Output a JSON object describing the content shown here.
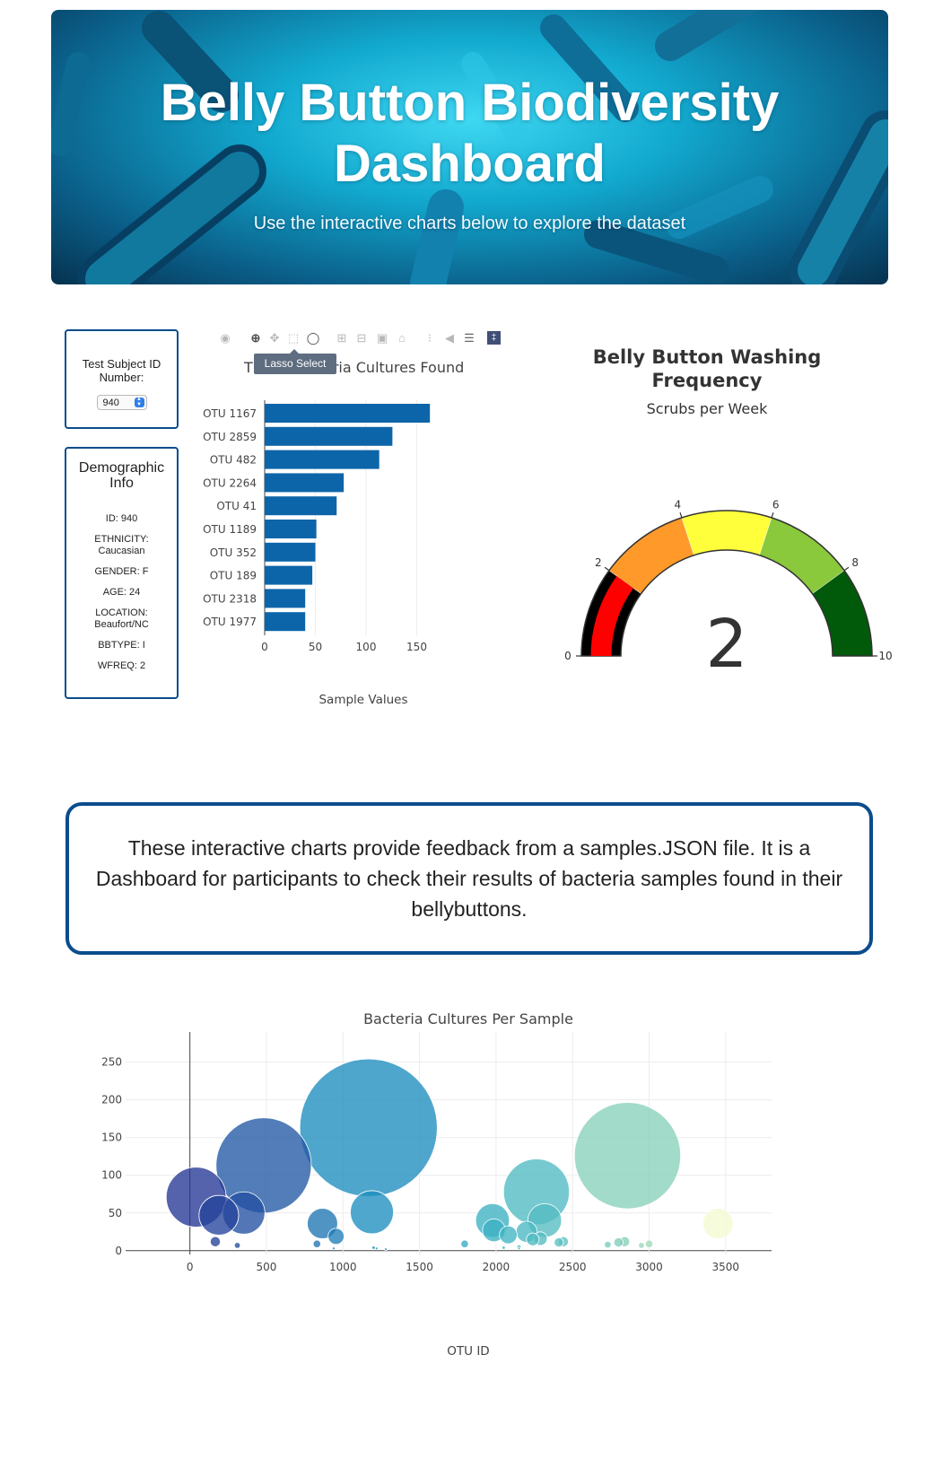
{
  "header": {
    "title": "Belly Button Biodiversity Dashboard",
    "subtitle": "Use the interactive charts below to explore the dataset"
  },
  "selector": {
    "label": "Test Subject ID Number:",
    "selected": "940"
  },
  "demographics": {
    "title": "Demographic Info",
    "items": [
      "ID: 940",
      "ETHNICITY: Caucasian",
      "GENDER: F",
      "AGE: 24",
      "LOCATION: Beaufort/NC",
      "BBTYPE: I",
      "WFREQ: 2"
    ]
  },
  "toolbar": {
    "icons": [
      "camera-icon",
      "zoom-icon",
      "pan-icon",
      "box-select-icon",
      "lasso-select-icon",
      "zoom-in-icon",
      "zoom-out-icon",
      "autoscale-icon",
      "reset-axes-icon",
      "spike-lines-icon",
      "hover-closest-icon",
      "hover-compare-icon",
      "plotly-logo-icon"
    ],
    "tooltip": "Lasso Select"
  },
  "info_text": "These interactive charts provide feedback from a samples.JSON file. It is a Dashboard for participants to check their results of bacteria samples found in their bellybuttons.",
  "chart_data": [
    {
      "type": "bar",
      "orientation": "horizontal",
      "title": "Top 10 Bacteria Cultures Found",
      "title_visible": "T",
      "title_tail": "eria Cultures Found",
      "xlabel": "Sample Values",
      "categories": [
        "OTU 1167",
        "OTU 2859",
        "OTU 482",
        "OTU 2264",
        "OTU 41",
        "OTU 1189",
        "OTU 352",
        "OTU 189",
        "OTU 2318",
        "OTU 1977"
      ],
      "values": [
        163,
        126,
        113,
        78,
        71,
        51,
        50,
        47,
        40,
        40
      ],
      "xticks": [
        0,
        50,
        100,
        150
      ],
      "xlim": [
        0,
        175
      ],
      "color": "#0d65a9"
    },
    {
      "type": "gauge",
      "title": "Belly Button Washing Frequency",
      "subtitle": "Scrubs per Week",
      "value": 2,
      "range": [
        0,
        10
      ],
      "ticks": [
        0,
        2,
        4,
        6,
        8,
        10
      ],
      "steps": [
        {
          "range": [
            0,
            2
          ],
          "color": "#000000"
        },
        {
          "range": [
            2,
            4
          ],
          "color": "#ff9a2a"
        },
        {
          "range": [
            4,
            6
          ],
          "color": "#ffff3c"
        },
        {
          "range": [
            6,
            8
          ],
          "color": "#8ac83c"
        },
        {
          "range": [
            8,
            10
          ],
          "color": "#005a0a"
        }
      ],
      "bar_color": "#ff0000"
    },
    {
      "type": "scatter",
      "mode": "bubble",
      "title": "Bacteria Cultures Per Sample",
      "xlabel": "OTU ID",
      "ylabel": "",
      "xlim": [
        -420,
        3800
      ],
      "ylim": [
        -5,
        290
      ],
      "xticks": [
        0,
        500,
        1000,
        1500,
        2000,
        2500,
        3000,
        3500
      ],
      "yticks": [
        0,
        50,
        100,
        150,
        200,
        250
      ],
      "colorscale": "YlGnBu",
      "points": [
        {
          "x": 41,
          "y": 71
        },
        {
          "x": 189,
          "y": 47
        },
        {
          "x": 352,
          "y": 50
        },
        {
          "x": 482,
          "y": 113
        },
        {
          "x": 1167,
          "y": 163
        },
        {
          "x": 1189,
          "y": 51
        },
        {
          "x": 2264,
          "y": 78
        },
        {
          "x": 2318,
          "y": 40
        },
        {
          "x": 2859,
          "y": 126
        },
        {
          "x": 1977,
          "y": 40
        },
        {
          "x": 866,
          "y": 36
        },
        {
          "x": 955,
          "y": 19
        },
        {
          "x": 1986,
          "y": 27
        },
        {
          "x": 2080,
          "y": 21
        },
        {
          "x": 2200,
          "y": 25
        },
        {
          "x": 2240,
          "y": 15
        },
        {
          "x": 2290,
          "y": 16
        },
        {
          "x": 3450,
          "y": 36
        },
        {
          "x": 166,
          "y": 12
        },
        {
          "x": 310,
          "y": 7
        },
        {
          "x": 830,
          "y": 9
        },
        {
          "x": 1795,
          "y": 9
        },
        {
          "x": 2410,
          "y": 11
        },
        {
          "x": 2440,
          "y": 12
        },
        {
          "x": 2730,
          "y": 8
        },
        {
          "x": 2800,
          "y": 11
        },
        {
          "x": 2840,
          "y": 12
        },
        {
          "x": 2950,
          "y": 7
        },
        {
          "x": 3000,
          "y": 9
        },
        {
          "x": 2150,
          "y": 5
        },
        {
          "x": 2050,
          "y": 4
        },
        {
          "x": 1200,
          "y": 4
        },
        {
          "x": 1220,
          "y": 3
        },
        {
          "x": 1280,
          "y": 2
        },
        {
          "x": 940,
          "y": 3
        },
        {
          "x": 2150,
          "y": 3
        }
      ]
    }
  ]
}
